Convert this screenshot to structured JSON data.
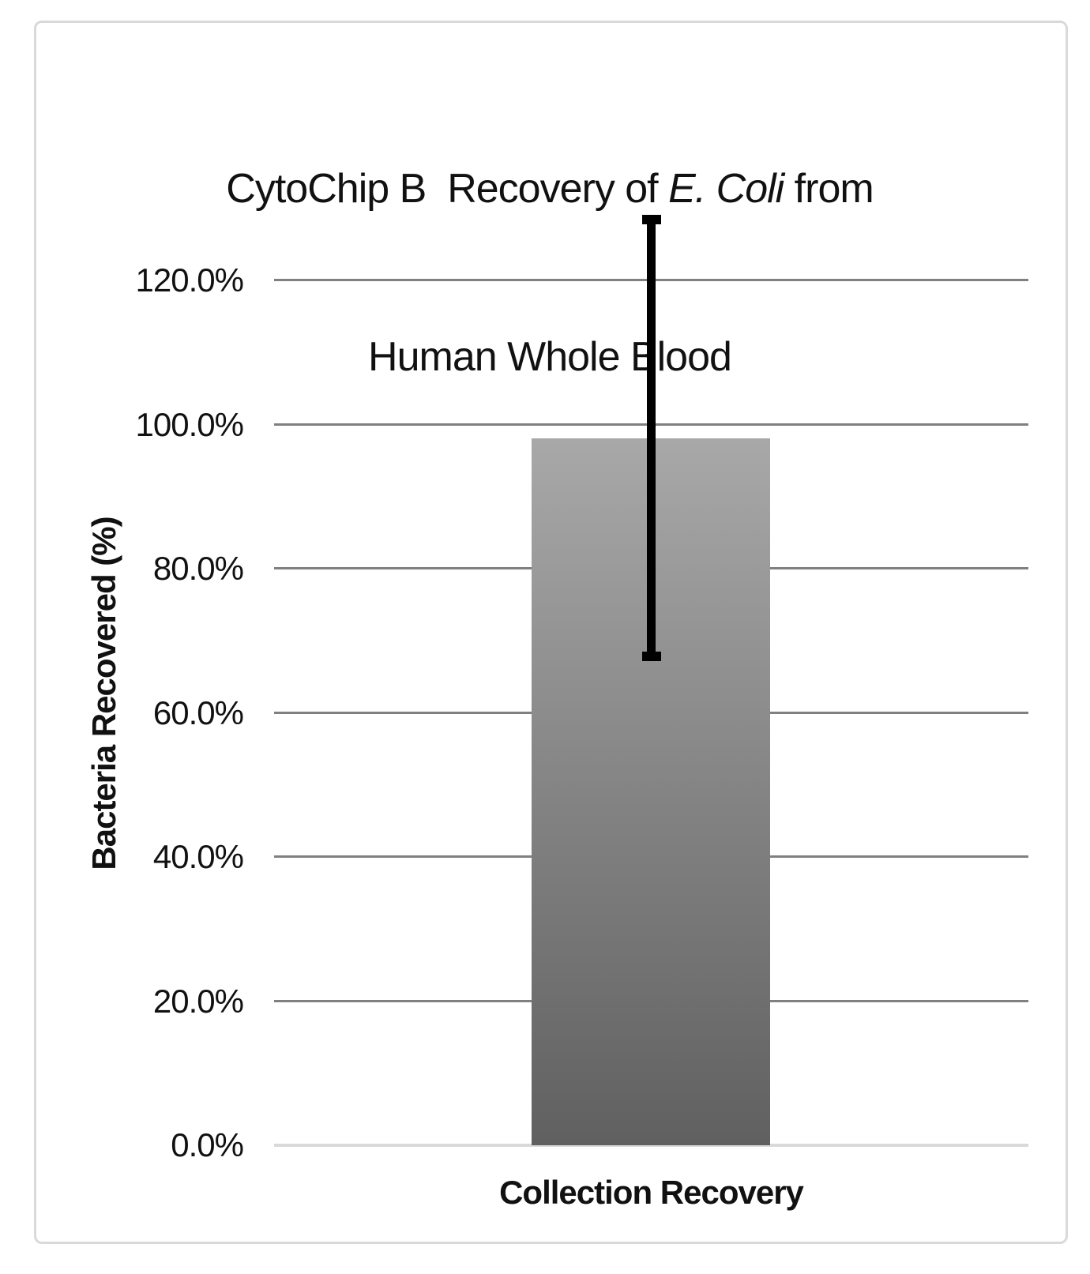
{
  "chart_data": {
    "type": "bar",
    "title": {
      "line1_pre": "CytoChip B  Recovery of ",
      "line1_italic": "E. Coli",
      "line1_post": " from",
      "line2": "Human Whole Blood",
      "full": "CytoChip B  Recovery of E. Coli from Human Whole Blood"
    },
    "ylabel": "Bacteria Recovered (%)",
    "xlabel": "",
    "categories": [
      "Collection Recovery"
    ],
    "values": [
      98.1
    ],
    "series": [
      {
        "name": "Collection Recovery",
        "value_pct": 98.1,
        "error_plus_pct": 30.3,
        "error_minus_pct": 30.3,
        "error_high_pct": 128.4,
        "error_low_pct": 67.8
      }
    ],
    "yticks": [
      {
        "value": 0,
        "label": "0.0%"
      },
      {
        "value": 20,
        "label": "20.0%"
      },
      {
        "value": 40,
        "label": "40.0%"
      },
      {
        "value": 60,
        "label": "60.0%"
      },
      {
        "value": 80,
        "label": "80.0%"
      },
      {
        "value": 100,
        "label": "100.0%"
      },
      {
        "value": 120,
        "label": "120.0%"
      }
    ],
    "ylim": [
      0,
      130
    ],
    "grid": "horizontal",
    "legend": "none",
    "colors": {
      "bar_top": "#a8a8a8",
      "bar_bottom": "#606060",
      "gridline": "#808080",
      "axis_line": "#d9d9d9",
      "error_bar": "#000000",
      "frame_border": "#d9d9d9",
      "text": "#111111",
      "background": "#ffffff"
    }
  }
}
